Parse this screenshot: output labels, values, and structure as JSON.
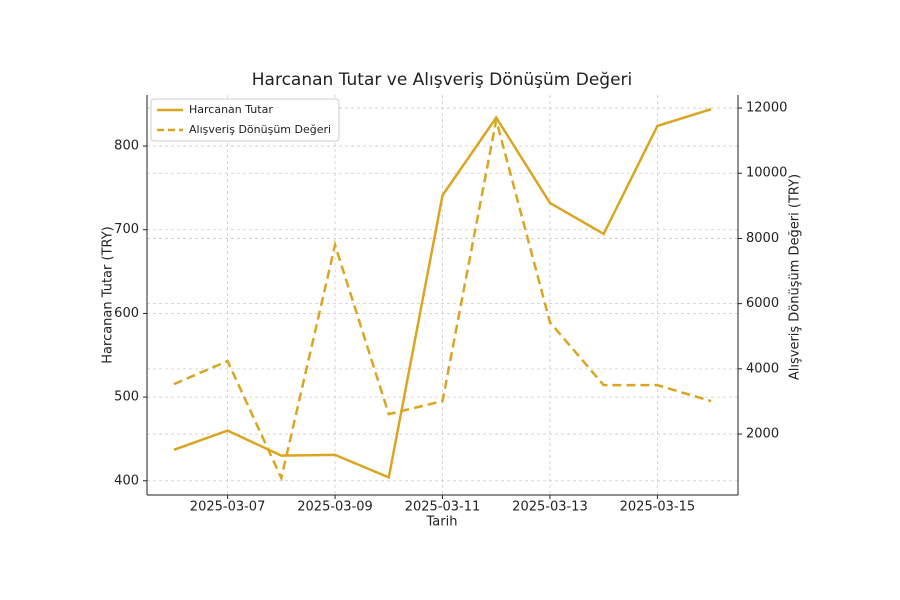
{
  "chart_data": {
    "type": "line",
    "title": "Harcanan Tutar ve Alışveriş Dönüşüm Değeri",
    "x_label": "Tarih",
    "y_label": "Harcanan Tutar (TRY)",
    "y2_label": "Alışveriş Dönüşüm Değeri (TRY)",
    "x": [
      "2025-03-06",
      "2025-03-07",
      "2025-03-08",
      "2025-03-09",
      "2025-03-10",
      "2025-03-11",
      "2025-03-12",
      "2025-03-13",
      "2025-03-14",
      "2025-03-15",
      "2025-03-16"
    ],
    "xticks": [
      "2025-03-07",
      "2025-03-09",
      "2025-03-11",
      "2025-03-13",
      "2025-03-15"
    ],
    "ylim": [
      383,
      861
    ],
    "yticks": [
      400,
      500,
      600,
      700,
      800
    ],
    "y2lim": [
      130,
      12400
    ],
    "y2ticks": [
      2000,
      4000,
      6000,
      8000,
      10000,
      12000
    ],
    "grid": true,
    "legend": "upper left",
    "series": [
      {
        "name": "Harcanan Tutar",
        "color": "#daa520",
        "dash": "solid",
        "values": [
          437,
          460,
          430,
          431,
          404,
          741,
          834,
          732,
          695,
          824,
          844
        ]
      },
      {
        "name": "Alışveriş Dönüşüm Değeri",
        "color": "#daa520",
        "dash": "dashed",
        "axis": "y2",
        "values": [
          3530,
          4240,
          650,
          7800,
          2610,
          3010,
          11630,
          5430,
          3500,
          3500,
          3010
        ]
      }
    ]
  }
}
